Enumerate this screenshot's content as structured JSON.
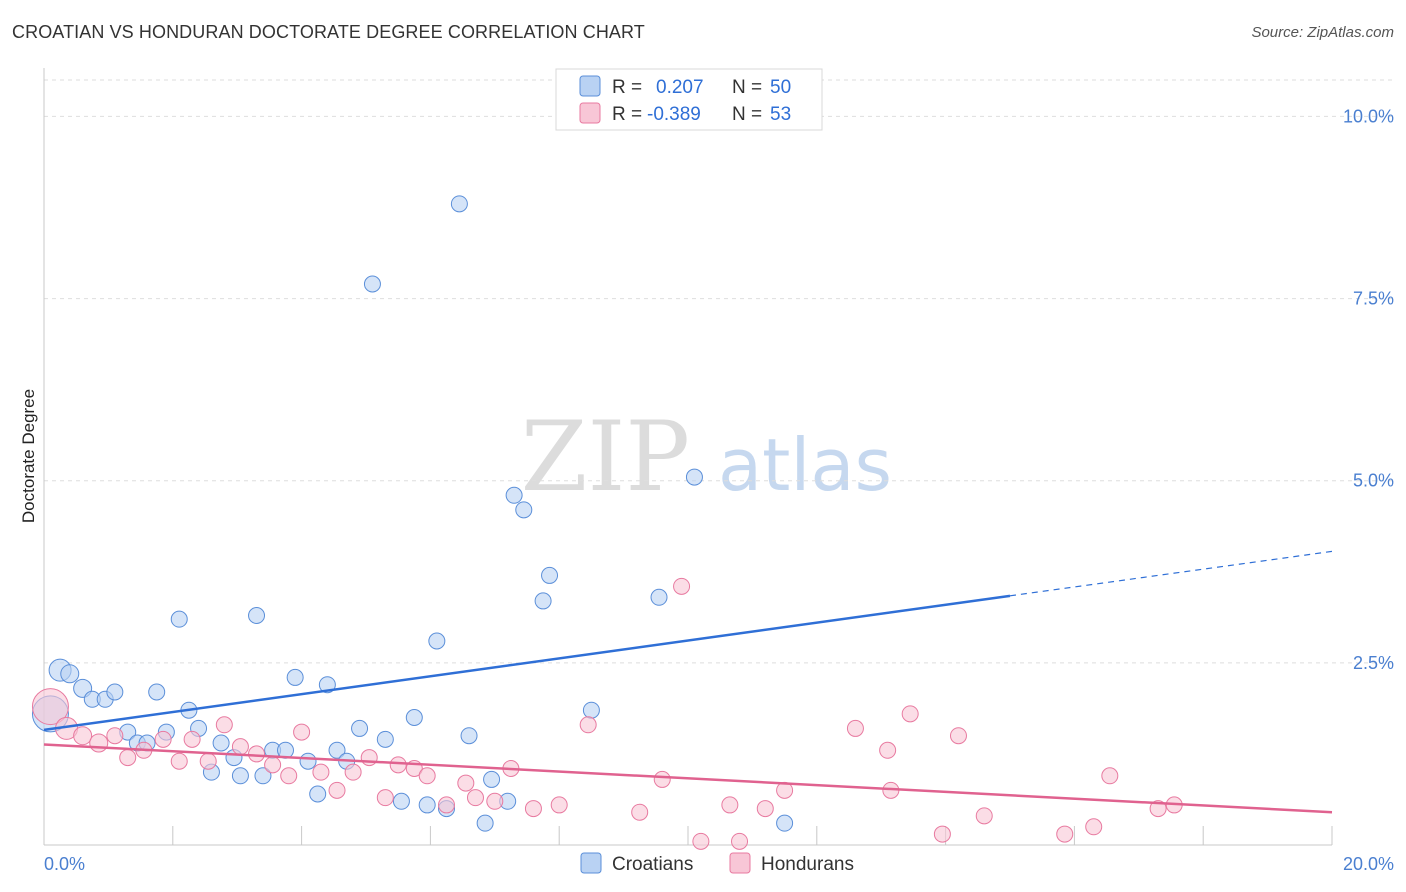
{
  "header": {
    "title": "CROATIAN VS HONDURAN DOCTORATE DEGREE CORRELATION CHART",
    "source": "Source: ZipAtlas.com"
  },
  "colors": {
    "croatians": "#5b8fd9",
    "croatians_fill": "#b9d2f3",
    "croatians_line": "#2f6fd6",
    "hondurans": "#e87aa0",
    "hondurans_fill": "#f8c6d6",
    "hondurans_line": "#e0628f"
  },
  "legend": {
    "rows": [
      {
        "r_label": "R =",
        "r_value": "0.207",
        "n_label": "N =",
        "n_value": "50"
      },
      {
        "r_label": "R =",
        "r_value": "-0.389",
        "n_label": "N =",
        "n_value": "53"
      }
    ]
  },
  "watermark": {
    "zip": "ZIP",
    "atlas": "atlas"
  },
  "chart_data": {
    "type": "scatter",
    "title": "CROATIAN VS HONDURAN DOCTORATE DEGREE CORRELATION CHART",
    "xlabel": "",
    "ylabel": "Doctorate Degree",
    "xlim": [
      0,
      20
    ],
    "ylim": [
      0,
      10.5
    ],
    "x_tick_labels": [
      "0.0%",
      "20.0%"
    ],
    "y_ticks": [
      2.5,
      5.0,
      7.5,
      10.0
    ],
    "y_tick_labels": [
      "2.5%",
      "5.0%",
      "7.5%",
      "10.0%"
    ],
    "legend_position": "top-center",
    "series": [
      {
        "name": "Croatians",
        "R": 0.207,
        "N": 50,
        "trend": {
          "x0": 0,
          "y0": 1.58,
          "x1": 15.0,
          "y1": 3.42,
          "dash_to_x": 20.0,
          "dash_to_y": 4.03
        },
        "points": [
          [
            0.1,
            1.8,
            18
          ],
          [
            0.25,
            2.4,
            11
          ],
          [
            0.4,
            2.35,
            9
          ],
          [
            0.6,
            2.15,
            9
          ],
          [
            0.75,
            2.0,
            8
          ],
          [
            0.95,
            2.0,
            8
          ],
          [
            1.1,
            2.1,
            8
          ],
          [
            1.3,
            1.55,
            8
          ],
          [
            1.45,
            1.4,
            8
          ],
          [
            1.6,
            1.4,
            8
          ],
          [
            1.75,
            2.1,
            8
          ],
          [
            1.9,
            1.55,
            8
          ],
          [
            2.1,
            3.1,
            8
          ],
          [
            2.25,
            1.85,
            8
          ],
          [
            2.4,
            1.6,
            8
          ],
          [
            2.6,
            1.0,
            8
          ],
          [
            2.75,
            1.4,
            8
          ],
          [
            2.95,
            1.2,
            8
          ],
          [
            3.05,
            0.95,
            8
          ],
          [
            3.3,
            3.15,
            8
          ],
          [
            3.4,
            0.95,
            8
          ],
          [
            3.55,
            1.3,
            8
          ],
          [
            3.75,
            1.3,
            8
          ],
          [
            3.9,
            2.3,
            8
          ],
          [
            4.1,
            1.15,
            8
          ],
          [
            4.25,
            0.7,
            8
          ],
          [
            4.4,
            2.2,
            8
          ],
          [
            4.55,
            1.3,
            8
          ],
          [
            4.7,
            1.15,
            8
          ],
          [
            4.9,
            1.6,
            8
          ],
          [
            5.1,
            7.7,
            8
          ],
          [
            5.3,
            1.45,
            8
          ],
          [
            5.55,
            0.6,
            8
          ],
          [
            5.75,
            1.75,
            8
          ],
          [
            5.95,
            0.55,
            8
          ],
          [
            6.1,
            2.8,
            8
          ],
          [
            6.25,
            0.5,
            8
          ],
          [
            6.45,
            8.8,
            8
          ],
          [
            6.6,
            1.5,
            8
          ],
          [
            6.85,
            0.3,
            8
          ],
          [
            6.95,
            0.9,
            8
          ],
          [
            7.2,
            0.6,
            8
          ],
          [
            7.3,
            4.8,
            8
          ],
          [
            7.45,
            4.6,
            8
          ],
          [
            7.75,
            3.35,
            8
          ],
          [
            7.85,
            3.7,
            8
          ],
          [
            8.5,
            1.85,
            8
          ],
          [
            9.55,
            3.4,
            8
          ],
          [
            10.1,
            5.05,
            8
          ],
          [
            11.5,
            0.3,
            8
          ]
        ]
      },
      {
        "name": "Hondurans",
        "R": -0.389,
        "N": 53,
        "trend": {
          "x0": 0,
          "y0": 1.38,
          "x1": 20.0,
          "y1": 0.45
        },
        "points": [
          [
            0.1,
            1.9,
            18
          ],
          [
            0.35,
            1.6,
            11
          ],
          [
            0.6,
            1.5,
            9
          ],
          [
            0.85,
            1.4,
            9
          ],
          [
            1.1,
            1.5,
            8
          ],
          [
            1.3,
            1.2,
            8
          ],
          [
            1.55,
            1.3,
            8
          ],
          [
            1.85,
            1.45,
            8
          ],
          [
            2.1,
            1.15,
            8
          ],
          [
            2.3,
            1.45,
            8
          ],
          [
            2.55,
            1.15,
            8
          ],
          [
            2.8,
            1.65,
            8
          ],
          [
            3.05,
            1.35,
            8
          ],
          [
            3.3,
            1.25,
            8
          ],
          [
            3.55,
            1.1,
            8
          ],
          [
            3.8,
            0.95,
            8
          ],
          [
            4.0,
            1.55,
            8
          ],
          [
            4.3,
            1.0,
            8
          ],
          [
            4.55,
            0.75,
            8
          ],
          [
            4.8,
            1.0,
            8
          ],
          [
            5.05,
            1.2,
            8
          ],
          [
            5.3,
            0.65,
            8
          ],
          [
            5.5,
            1.1,
            8
          ],
          [
            5.75,
            1.05,
            8
          ],
          [
            5.95,
            0.95,
            8
          ],
          [
            6.25,
            0.55,
            8
          ],
          [
            6.55,
            0.85,
            8
          ],
          [
            6.7,
            0.65,
            8
          ],
          [
            7.0,
            0.6,
            8
          ],
          [
            7.25,
            1.05,
            8
          ],
          [
            7.6,
            0.5,
            8
          ],
          [
            8.0,
            0.55,
            8
          ],
          [
            8.45,
            1.65,
            8
          ],
          [
            9.25,
            0.45,
            8
          ],
          [
            9.6,
            0.9,
            8
          ],
          [
            9.9,
            3.55,
            8
          ],
          [
            10.2,
            0.05,
            8
          ],
          [
            10.65,
            0.55,
            8
          ],
          [
            10.8,
            0.05,
            8
          ],
          [
            11.2,
            0.5,
            8
          ],
          [
            11.5,
            0.75,
            8
          ],
          [
            12.6,
            1.6,
            8
          ],
          [
            13.1,
            1.3,
            8
          ],
          [
            13.15,
            0.75,
            8
          ],
          [
            13.45,
            1.8,
            8
          ],
          [
            13.95,
            0.15,
            8
          ],
          [
            14.2,
            1.5,
            8
          ],
          [
            14.6,
            0.4,
            8
          ],
          [
            15.85,
            0.15,
            8
          ],
          [
            16.3,
            0.25,
            8
          ],
          [
            16.55,
            0.95,
            8
          ],
          [
            17.3,
            0.5,
            8
          ],
          [
            17.55,
            0.55,
            8
          ]
        ]
      }
    ]
  },
  "bottom_legend": {
    "croatians": "Croatians",
    "hondurans": "Hondurans"
  }
}
